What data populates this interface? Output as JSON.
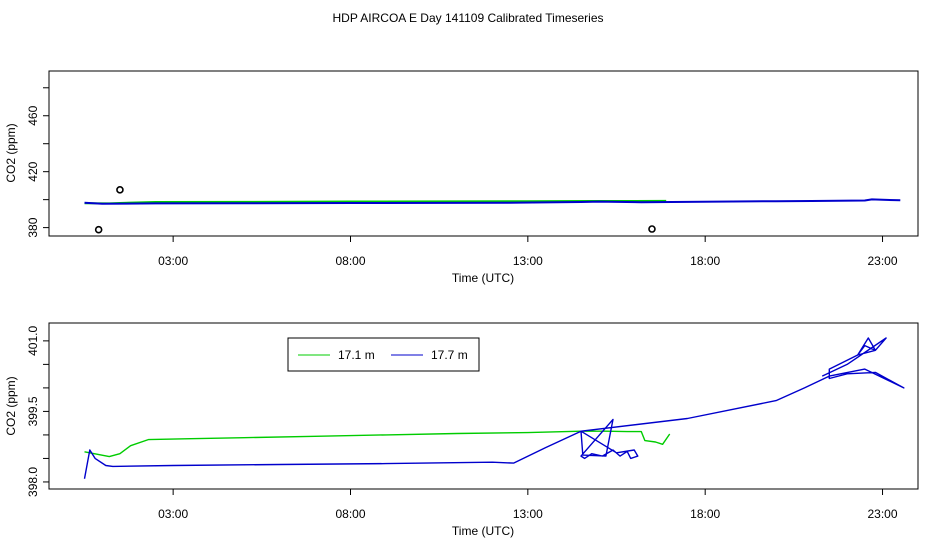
{
  "title": "HDP AIRCOA E  Day 141109  Calibrated Timeseries",
  "chart_data": [
    {
      "type": "line",
      "xlabel": "Time (UTC)",
      "ylabel": "CO2 (ppm)",
      "xlim": [
        -0.5,
        24.0
      ],
      "ylim": [
        374,
        492
      ],
      "x_ticks": [
        3,
        8,
        13,
        18,
        23
      ],
      "x_tick_labels": [
        "03:00",
        "08:00",
        "13:00",
        "18:00",
        "23:00"
      ],
      "y_ticks": [
        380,
        400,
        420,
        440,
        460,
        480
      ],
      "y_tick_labels": [
        "380",
        "",
        "420",
        "",
        "460",
        ""
      ],
      "series": [
        {
          "color": "#00cc00",
          "x": [
            0.5,
            1.2,
            1.5,
            2.5,
            5.0,
            8.0,
            13.0,
            14.8,
            16.9
          ],
          "y": [
            397.4,
            397.3,
            397.6,
            398.3,
            398.4,
            398.7,
            398.9,
            399.0,
            399.1
          ]
        },
        {
          "color": "#0000cc",
          "x": [
            0.5,
            1.0,
            2.5,
            5.0,
            8.0,
            12.5,
            12.8,
            14.5,
            15.0,
            16.2,
            20.0,
            21.0,
            22.5,
            22.7,
            23.5
          ],
          "y": [
            397.8,
            397.0,
            397.3,
            397.4,
            397.6,
            397.8,
            397.9,
            398.3,
            398.6,
            398.2,
            398.9,
            399.0,
            399.4,
            400.2,
            399.5
          ]
        }
      ],
      "outliers": {
        "x": [
          0.9,
          1.5,
          16.5
        ],
        "y": [
          378.5,
          407.0,
          379.0
        ]
      }
    },
    {
      "type": "line",
      "xlabel": "Time (UTC)",
      "ylabel": "CO2 (ppm)",
      "xlim": [
        -0.5,
        24.0
      ],
      "ylim": [
        397.85,
        401.38
      ],
      "x_ticks": [
        3,
        8,
        13,
        18,
        23
      ],
      "x_tick_labels": [
        "03:00",
        "08:00",
        "13:00",
        "18:00",
        "23:00"
      ],
      "y_ticks": [
        398.0,
        398.5,
        399.0,
        399.5,
        400.0,
        400.5,
        401.0
      ],
      "y_tick_labels": [
        "398.0",
        "",
        "",
        "399.5",
        "",
        "",
        "401.0"
      ],
      "legend": {
        "placement": "top-left",
        "entries": [
          {
            "label": "17.1 m",
            "color": "#00cc00"
          },
          {
            "label": "17.7 m",
            "color": "#0000cc"
          }
        ]
      },
      "series": [
        {
          "name": "17.1 m",
          "color": "#00cc00",
          "x": [
            0.5,
            1.2,
            1.5,
            1.8,
            2.3,
            3.5,
            5.0,
            7.0,
            9.0,
            11.0,
            13.0,
            14.5,
            15.2,
            15.8,
            16.2,
            16.3,
            16.6,
            16.8,
            17.0
          ],
          "y": [
            398.64,
            398.54,
            398.6,
            398.77,
            398.9,
            398.92,
            398.94,
            398.97,
            399.0,
            399.03,
            399.05,
            399.08,
            399.08,
            399.07,
            399.07,
            398.88,
            398.85,
            398.8,
            399.02
          ]
        },
        {
          "name": "17.7 m",
          "color": "#0000cc",
          "x": [
            0.5,
            0.65,
            0.8,
            1.1,
            1.3,
            3.0,
            6.0,
            9.0,
            12.0,
            12.6,
            13.5,
            14.5,
            14.55,
            15.2,
            15.4,
            14.5,
            14.6,
            14.8,
            15.1,
            15.4,
            15.6,
            15.8,
            15.9,
            16.1,
            16.0,
            15.5,
            14.5,
            17.5,
            20.0,
            20.8,
            21.5,
            22.5,
            23.6,
            22.8,
            22.0,
            21.5,
            21.5,
            22.3,
            22.6,
            22.8,
            22.5,
            22.3,
            22.8,
            23.1,
            22.0,
            21.3
          ],
          "y": [
            398.07,
            398.68,
            398.5,
            398.35,
            398.33,
            398.35,
            398.37,
            398.39,
            398.42,
            398.4,
            398.73,
            399.08,
            398.57,
            398.55,
            399.33,
            398.55,
            398.5,
            398.6,
            398.55,
            398.68,
            398.55,
            398.65,
            398.5,
            398.55,
            398.68,
            398.62,
            399.08,
            399.35,
            399.73,
            400.0,
            400.25,
            400.4,
            400.0,
            400.33,
            400.3,
            400.2,
            400.4,
            400.7,
            401.06,
            400.8,
            400.9,
            400.7,
            400.8,
            401.06,
            400.5,
            400.25
          ]
        }
      ]
    }
  ]
}
